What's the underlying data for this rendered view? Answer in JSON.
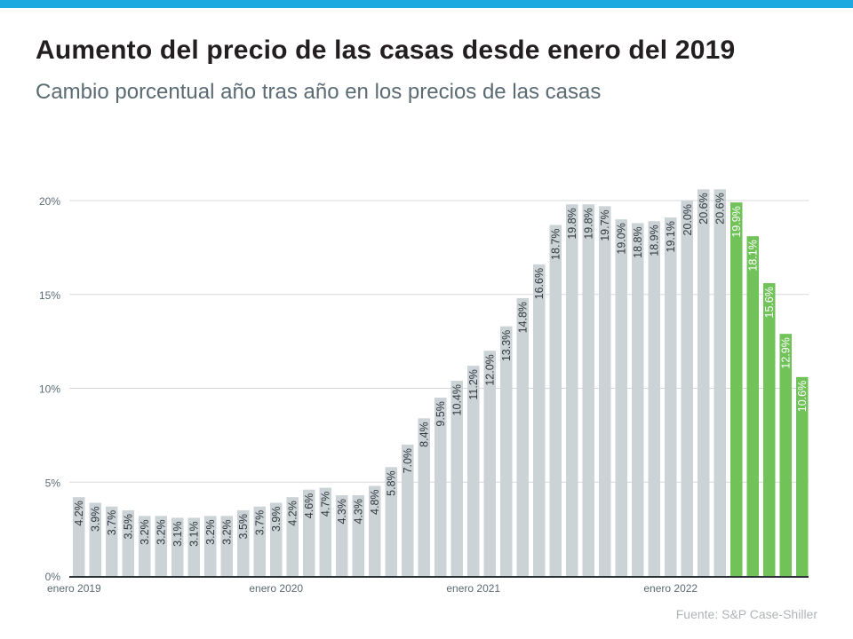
{
  "title": "Aumento del precio de las casas desde enero del 2019",
  "subtitle": "Cambio porcentual año tras año en los precios de las casas",
  "source": "Fuente:  S&P Case-Shiller",
  "colors": {
    "topbar": "#1fa9e1",
    "bar_gray": "#cbd3d7",
    "bar_green": "#72c25a",
    "axis": "#2b3338",
    "grid": "#d5d9db"
  },
  "chart_data": {
    "type": "bar",
    "title": "Aumento del precio de las casas desde enero del 2019",
    "subtitle": "Cambio porcentual año tras año en los precios de las casas",
    "xlabel": "",
    "ylabel": "",
    "ylim": [
      0,
      20
    ],
    "yticks": [
      "0%",
      "5%",
      "10%",
      "15%",
      "20%"
    ],
    "ytick_values": [
      0,
      5,
      10,
      15,
      20
    ],
    "grid": true,
    "xtick_labels": [
      {
        "index": 0,
        "label": "enero  2019"
      },
      {
        "index": 12,
        "label": "enero 2020"
      },
      {
        "index": 24,
        "label": "enero 2021"
      },
      {
        "index": 36,
        "label": "enero 2022"
      }
    ],
    "categories": [
      "2019-01",
      "2019-02",
      "2019-03",
      "2019-04",
      "2019-05",
      "2019-06",
      "2019-07",
      "2019-08",
      "2019-09",
      "2019-10",
      "2019-11",
      "2019-12",
      "2020-01",
      "2020-02",
      "2020-03",
      "2020-04",
      "2020-05",
      "2020-06",
      "2020-07",
      "2020-08",
      "2020-09",
      "2020-10",
      "2020-11",
      "2020-12",
      "2021-01",
      "2021-02",
      "2021-03",
      "2021-04",
      "2021-05",
      "2021-06",
      "2021-07",
      "2021-08",
      "2021-09",
      "2021-10",
      "2021-11",
      "2021-12",
      "2022-01",
      "2022-02",
      "2022-03",
      "2022-04",
      "2022-05",
      "2022-06",
      "2022-07",
      "2022-08",
      "2022-09"
    ],
    "values": [
      4.2,
      3.9,
      3.7,
      3.5,
      3.2,
      3.2,
      3.1,
      3.1,
      3.2,
      3.2,
      3.5,
      3.7,
      3.9,
      4.2,
      4.6,
      4.7,
      4.3,
      4.3,
      4.8,
      5.8,
      7.0,
      8.4,
      9.5,
      10.4,
      11.2,
      12.0,
      13.3,
      14.8,
      16.6,
      18.7,
      19.8,
      19.8,
      19.7,
      19.0,
      18.8,
      18.9,
      19.1,
      20.0,
      20.6,
      20.6,
      19.9,
      18.1,
      15.6,
      12.9,
      10.6
    ],
    "data_labels": [
      "4.2%",
      "3.9%",
      "3.7%",
      "3.5%",
      "3.2%",
      "3.2%",
      "3.1%",
      "3.1%",
      "3.2%",
      "3.2%",
      "3.5%",
      "3.7%",
      "3.9%",
      "4.2%",
      "4.6%",
      "4.7%",
      "4.3%",
      "4.3%",
      "4.8%",
      "5.8%",
      "7.0%",
      "8.4%",
      "9.5%",
      "10.4%",
      "11.2%",
      "12.0%",
      "13.3%",
      "14.8%",
      "16.6%",
      "18.7%",
      "19.8%",
      "19.8%",
      "19.7%",
      "19.0%",
      "18.8%",
      "18.9%",
      "19.1%",
      "20.0%",
      "20.6%",
      "20.6%",
      "19.9%",
      "18.1%",
      "15.6%",
      "12.9%",
      "10.6%"
    ],
    "highlight_from_index": 40
  }
}
